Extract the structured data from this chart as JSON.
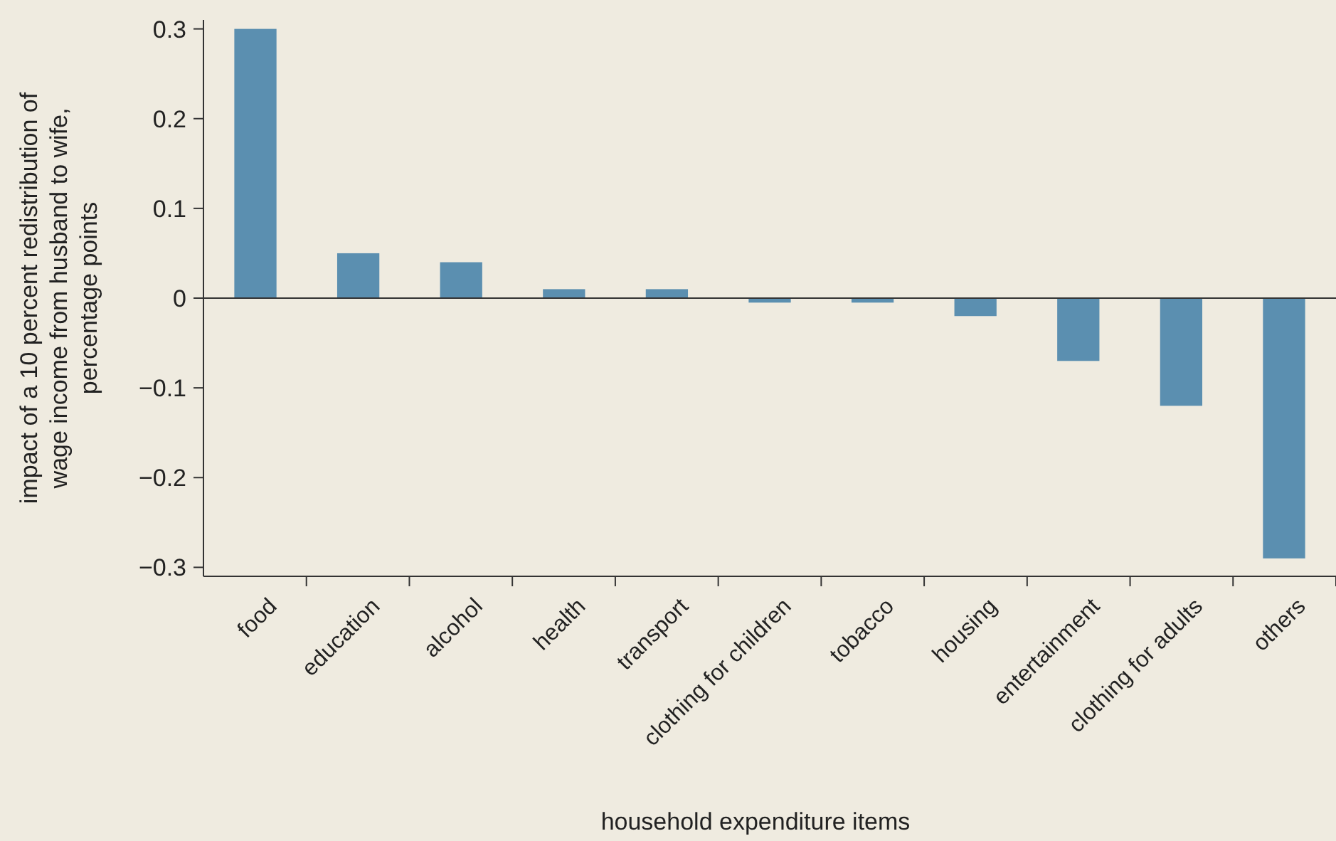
{
  "chart_data": {
    "type": "bar",
    "xlabel": "household expenditure items",
    "ylabel": "impact of a 10 percent redistribution of\nwage income from husband to wife,\npercentage points",
    "categories": [
      "food",
      "education",
      "alcohol",
      "health",
      "transport",
      "clothing for children",
      "tobacco",
      "housing",
      "entertainment",
      "clothing for adults",
      "others"
    ],
    "values": [
      0.3,
      0.05,
      0.04,
      0.01,
      0.01,
      -0.005,
      -0.005,
      -0.02,
      -0.07,
      -0.12,
      -0.29
    ],
    "color": "#5b8fb0",
    "ylim": [
      -0.31,
      0.31
    ],
    "yticks": [
      0.3,
      0.2,
      0.1,
      0,
      {
        "value": -0.1,
        "label": "−0.1"
      },
      {
        "value": -0.2,
        "label": "−0.2"
      },
      {
        "value": -0.3,
        "label": "−0.3"
      }
    ]
  }
}
